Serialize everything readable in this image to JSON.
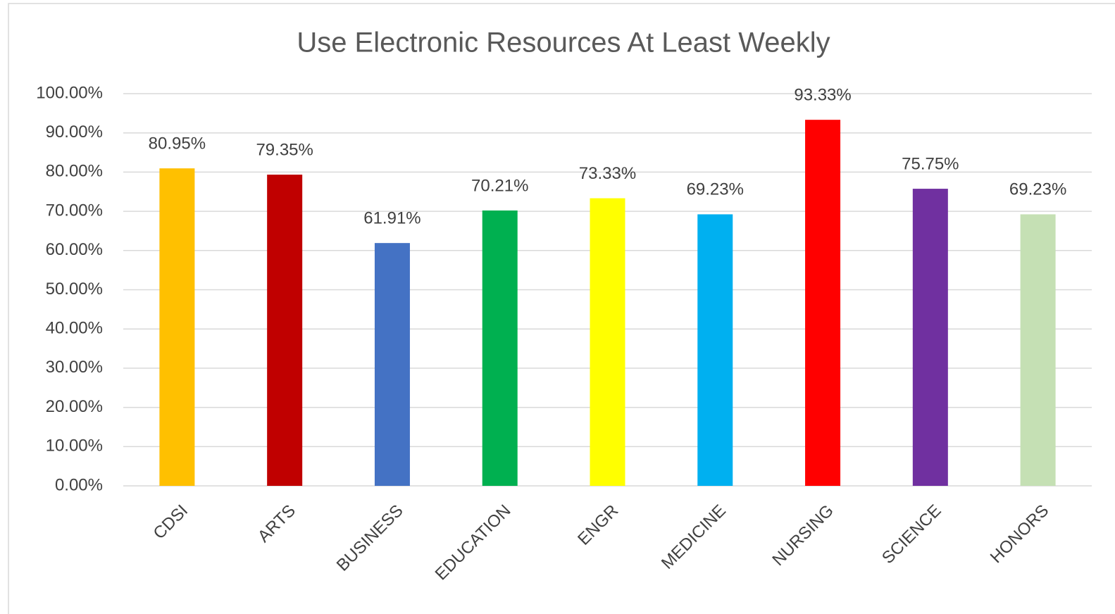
{
  "chart_data": {
    "type": "bar",
    "title": "Use Electronic Resources At Least Weekly",
    "categories": [
      "CDSI",
      "ARTS",
      "BUSINESS",
      "EDUCATION",
      "ENGR",
      "MEDICINE",
      "NURSING",
      "SCIENCE",
      "HONORS"
    ],
    "values": [
      80.95,
      79.35,
      61.91,
      70.21,
      73.33,
      69.23,
      93.33,
      75.75,
      69.23
    ],
    "value_labels": [
      "80.95%",
      "79.35%",
      "61.91%",
      "70.21%",
      "73.33%",
      "69.23%",
      "93.33%",
      "75.75%",
      "69.23%"
    ],
    "colors": [
      "#ffc000",
      "#c00000",
      "#4472c4",
      "#00b050",
      "#ffff00",
      "#00b0f0",
      "#ff0000",
      "#7030a0",
      "#c5e0b4"
    ],
    "ylim": [
      0,
      100
    ],
    "yticks": [
      {
        "value": 0,
        "label": "0.00%"
      },
      {
        "value": 10,
        "label": "10.00%"
      },
      {
        "value": 20,
        "label": "20.00%"
      },
      {
        "value": 30,
        "label": "30.00%"
      },
      {
        "value": 40,
        "label": "40.00%"
      },
      {
        "value": 50,
        "label": "50.00%"
      },
      {
        "value": 60,
        "label": "60.00%"
      },
      {
        "value": 70,
        "label": "70.00%"
      },
      {
        "value": 80,
        "label": "80.00%"
      },
      {
        "value": 90,
        "label": "90.00%"
      },
      {
        "value": 100,
        "label": "100.00%"
      }
    ],
    "grid": true
  }
}
